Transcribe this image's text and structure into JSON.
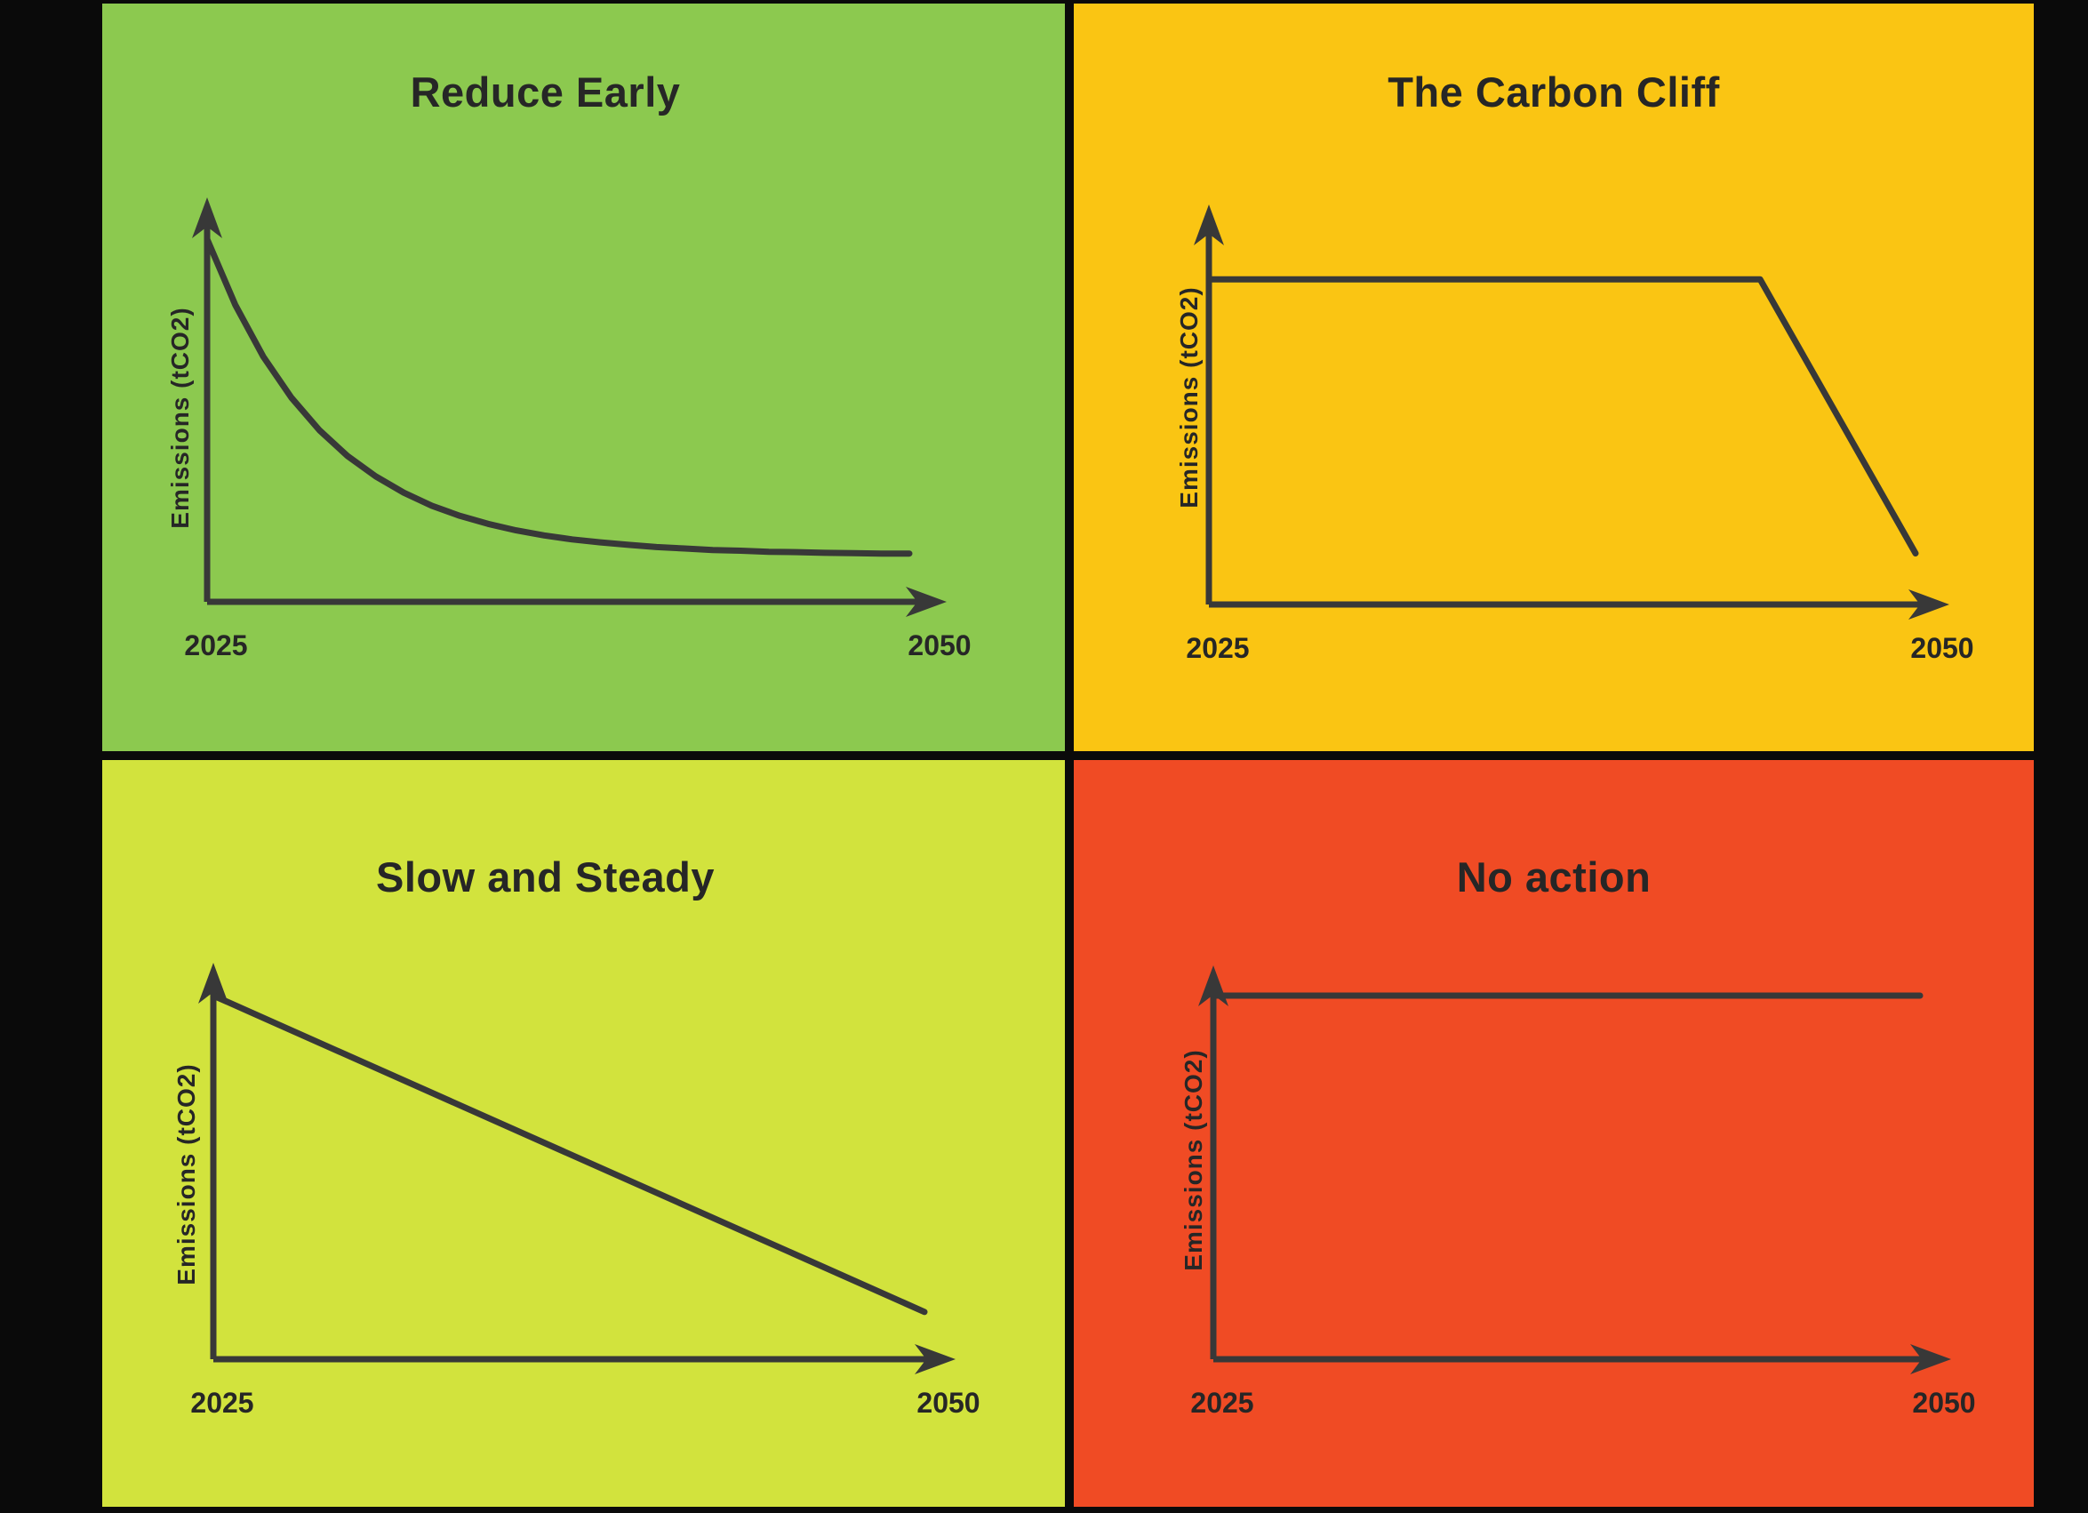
{
  "page": {
    "background": "#0A0A0A",
    "line_color": "#383838",
    "text_color": "#262626"
  },
  "labels": {
    "y_axis": "Emissions (tCO2)",
    "x_start": "2025",
    "x_end": "2050"
  },
  "chart_data": [
    {
      "type": "line",
      "title": "Reduce Early",
      "panel_color": "#8CC94F",
      "line_color": "#383838",
      "xlabel": "",
      "ylabel": "Emissions (tCO2)",
      "x_range": [
        2025,
        2050
      ],
      "y_range": [
        0,
        100
      ],
      "x_tick_labels": [
        "2025",
        "2050"
      ],
      "grid": false,
      "legend": "none",
      "shape": "exponential decay, steep early reduction levelling to low asymptote",
      "x": [
        2025,
        2026,
        2027,
        2028,
        2029,
        2030,
        2031,
        2032,
        2033,
        2034,
        2035,
        2036,
        2037,
        2038,
        2039,
        2040,
        2041,
        2042,
        2043,
        2044,
        2045,
        2046,
        2047,
        2048,
        2049,
        2050
      ],
      "y": [
        100,
        81.9,
        67.6,
        56.3,
        47.3,
        40.2,
        34.6,
        30.1,
        26.5,
        23.7,
        21.5,
        19.7,
        18.3,
        17.2,
        16.4,
        15.7,
        15.1,
        14.7,
        14.3,
        14.1,
        13.8,
        13.7,
        13.5,
        13.4,
        13.3,
        13.3
      ]
    },
    {
      "type": "line",
      "title": "The Carbon Cliff",
      "panel_color": "#FAC513",
      "line_color": "#383838",
      "xlabel": "",
      "ylabel": "Emissions (tCO2)",
      "x_range": [
        2025,
        2050
      ],
      "y_range": [
        0,
        100
      ],
      "x_tick_labels": [
        "2025",
        "2050"
      ],
      "grid": false,
      "legend": "none",
      "shape": "flat high emissions until ~2044, then sudden steep drop (cliff)",
      "x": [
        2025,
        2044.5,
        2050
      ],
      "y": [
        89,
        89,
        14
      ]
    },
    {
      "type": "line",
      "title": "Slow and Steady",
      "panel_color": "#D2E33D",
      "line_color": "#383838",
      "xlabel": "",
      "ylabel": "Emissions (tCO2)",
      "x_range": [
        2025,
        2050
      ],
      "y_range": [
        0,
        100
      ],
      "x_tick_labels": [
        "2025",
        "2050"
      ],
      "grid": false,
      "legend": "none",
      "shape": "straight linear decline from high to low",
      "x": [
        2025,
        2050
      ],
      "y": [
        100,
        13
      ]
    },
    {
      "type": "line",
      "title": "No action",
      "panel_color": "#F04B24",
      "line_color": "#383838",
      "xlabel": "",
      "ylabel": "Emissions (tCO2)",
      "x_range": [
        2025,
        2050
      ],
      "y_range": [
        0,
        100
      ],
      "x_tick_labels": [
        "2025",
        "2050"
      ],
      "grid": false,
      "legend": "none",
      "shape": "constant flat high emissions line",
      "x": [
        2025,
        2050
      ],
      "y": [
        100,
        100
      ]
    }
  ]
}
